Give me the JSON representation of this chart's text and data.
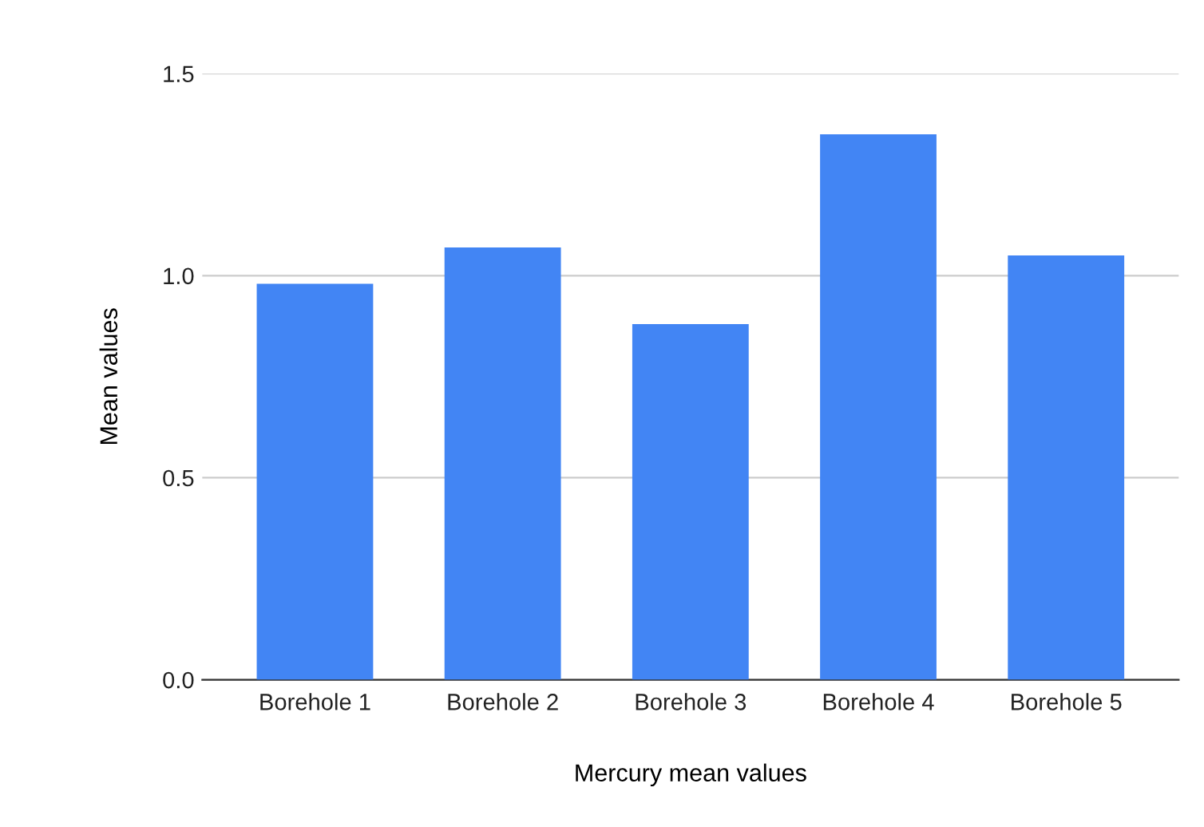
{
  "chart_data": {
    "type": "bar",
    "xlabel": "Mercury mean values",
    "ylabel": "Mean values",
    "categories": [
      "Borehole 1",
      "Borehole 2",
      "Borehole 3",
      "Borehole 4",
      "Borehole 5"
    ],
    "values": [
      0.98,
      1.07,
      0.88,
      1.35,
      1.05
    ],
    "color": "#4285f4",
    "ylim": [
      0,
      1.5
    ],
    "yticks": [
      {
        "value": 0,
        "label": "0.0"
      },
      {
        "value": 0.5,
        "label": "0.5"
      },
      {
        "value": 1,
        "label": "1.0"
      },
      {
        "value": 1.5,
        "label": "1.5"
      }
    ],
    "grid": "y"
  }
}
